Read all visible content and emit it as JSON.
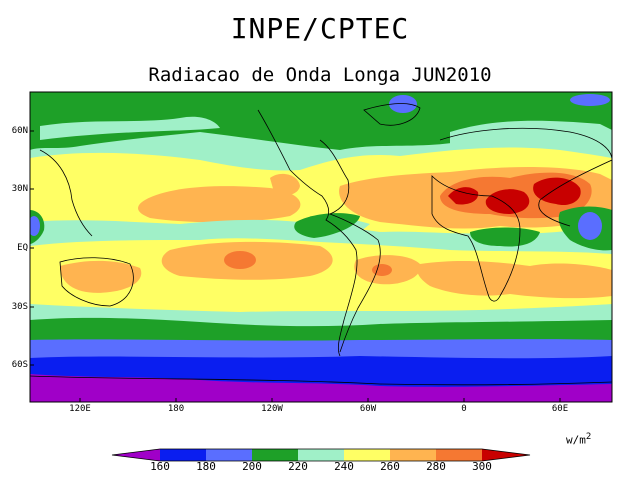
{
  "header": {
    "title": "INPE/CPTEC",
    "subtitle": "Radiacao de Onda Longa JUN2010"
  },
  "axes": {
    "lat_labels": [
      "60N",
      "30N",
      "EQ",
      "30S",
      "60S"
    ],
    "lon_labels": [
      "120E",
      "180",
      "120W",
      "60W",
      "0",
      "60E"
    ]
  },
  "units": {
    "base": "w/m",
    "exp": "2"
  },
  "colorbar": {
    "labels": [
      "160",
      "180",
      "200",
      "220",
      "240",
      "260",
      "280",
      "300"
    ],
    "colors": [
      "#a000c8",
      "#0a1ef0",
      "#5a6eff",
      "#1ea028",
      "#a0f0c8",
      "#ffff64",
      "#ffb450",
      "#f57832",
      "#c80000"
    ]
  },
  "regions": {
    "high_latitude_south": "#a000c8",
    "southern_ocean": "#0a1ef0",
    "subtropical_desert_peak": "#c80000"
  }
}
